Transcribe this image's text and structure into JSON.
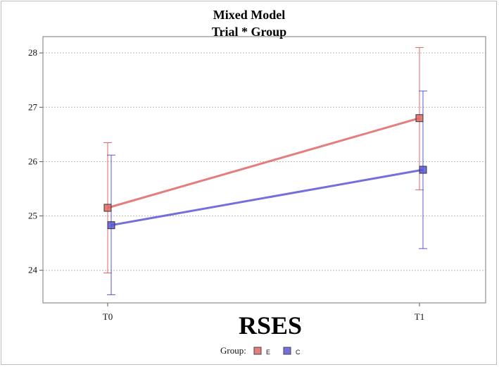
{
  "chart_data": {
    "type": "line",
    "title": "Mixed Model",
    "subtitle": "Trial * Group",
    "xlabel": "RSES",
    "ylabel": "",
    "categories": [
      "T0",
      "T1"
    ],
    "ylim": [
      23.4,
      28.3
    ],
    "yticks": [
      24,
      25,
      26,
      27,
      28
    ],
    "grid": true,
    "legend_title": "Group:",
    "legend_position": "bottom",
    "series": [
      {
        "name": "E",
        "color": "#e06666",
        "values": [
          25.15,
          26.8
        ],
        "lower": [
          23.95,
          25.48
        ],
        "upper": [
          26.35,
          28.1
        ]
      },
      {
        "name": "C",
        "color": "#5b57d6",
        "values": [
          24.83,
          25.85
        ],
        "lower": [
          23.55,
          24.4
        ],
        "upper": [
          26.12,
          27.3
        ]
      }
    ]
  }
}
